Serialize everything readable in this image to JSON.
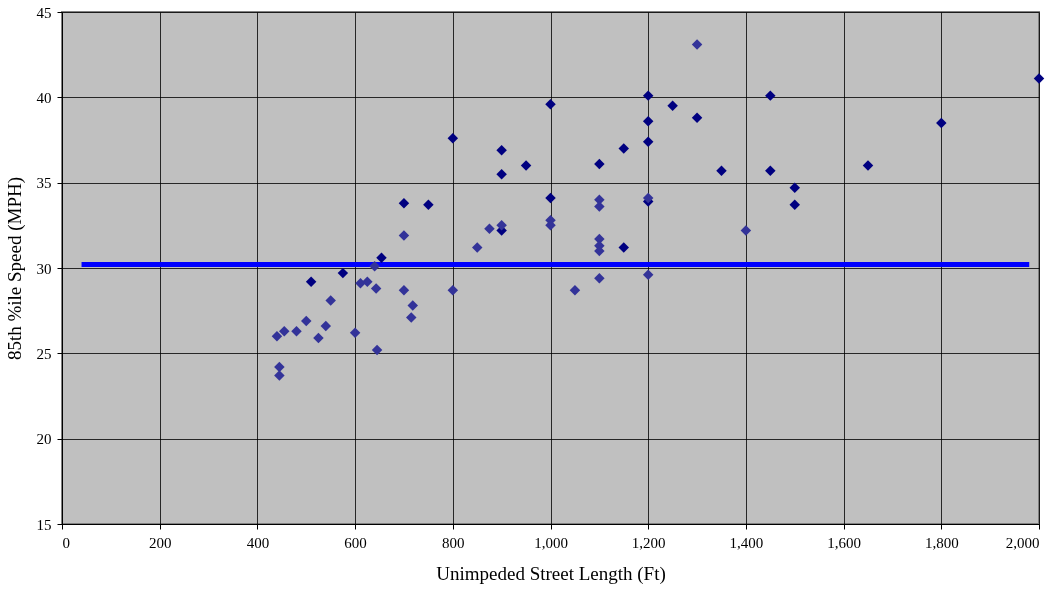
{
  "chart_data": {
    "type": "scatter",
    "xlabel": "Unimpeded  Street  Length  (Ft)",
    "ylabel": "85th  %ile  Speed  (MPH)",
    "xlim": [
      0,
      2000
    ],
    "xticks": [
      0,
      200,
      400,
      600,
      800,
      {
        "value": 1000,
        "label": "1,000"
      },
      {
        "value": 1200,
        "label": "1,200"
      },
      {
        "value": 1400,
        "label": "1,400"
      },
      {
        "value": 1600,
        "label": "1,600"
      },
      {
        "value": 1800,
        "label": "1,800"
      },
      {
        "value": 2000,
        "label": "2,000"
      }
    ],
    "ylim": [
      15,
      45
    ],
    "yticks": [
      15,
      20,
      25,
      30,
      35,
      40,
      45
    ],
    "grid": true,
    "marker": "diamond",
    "series": [
      {
        "type": "line",
        "color": "#0000ff",
        "marker": "none",
        "x": [
          40,
          1980
        ],
        "values": [
          30.2,
          30.2
        ]
      },
      {
        "type": "scatter",
        "color": "#000080",
        "x": [
          510,
          575,
          654,
          700,
          750,
          800,
          900,
          900,
          900,
          950,
          1000,
          1000,
          1100,
          1150,
          1150,
          1200,
          1200,
          1200,
          1200,
          1250,
          1300,
          1350,
          1450,
          1450,
          1500,
          1500,
          1650,
          1800,
          2000
        ],
        "values": [
          29.2,
          29.7,
          30.6,
          33.8,
          33.7,
          37.6,
          36.9,
          35.5,
          32.2,
          36.0,
          39.6,
          34.1,
          36.1,
          37.0,
          31.2,
          40.1,
          38.6,
          37.4,
          33.9,
          39.5,
          38.8,
          35.7,
          40.1,
          35.7,
          34.7,
          33.7,
          36.0,
          38.5,
          41.1
        ]
      },
      {
        "type": "scatter",
        "color": "#333399",
        "x": [
          440,
          445,
          445,
          455,
          480,
          500,
          525,
          540,
          550,
          600,
          611,
          625,
          640,
          643,
          645,
          700,
          700,
          715,
          718,
          800,
          850,
          875,
          900,
          1000,
          1000,
          1050,
          1100,
          1100,
          1100,
          1100,
          1100,
          1100,
          1200,
          1200,
          1300,
          1400
        ],
        "values": [
          26.0,
          24.2,
          23.7,
          26.3,
          26.3,
          26.9,
          25.9,
          26.6,
          28.1,
          26.2,
          29.1,
          29.2,
          30.1,
          28.8,
          25.2,
          31.9,
          28.7,
          27.1,
          27.8,
          28.7,
          31.2,
          32.3,
          32.5,
          32.8,
          32.5,
          28.7,
          34.0,
          33.6,
          31.7,
          31.3,
          31.0,
          29.4,
          34.1,
          29.6,
          43.1,
          32.2
        ]
      }
    ]
  }
}
